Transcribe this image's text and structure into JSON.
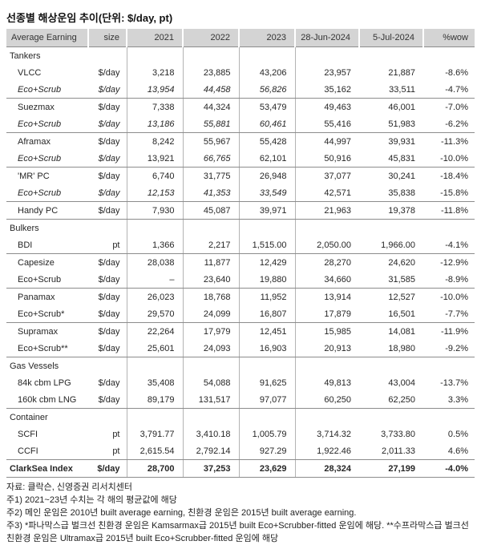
{
  "title": "선종별 해상운임 추이(단위:  $/day, pt)",
  "colors": {
    "header_bg": "#d4d4d4",
    "rule": "#8c8c8c",
    "grid": "#b3b3b3",
    "text": "#262626"
  },
  "table": {
    "columns": [
      "Average Earning",
      "size",
      "2021",
      "2022",
      "2023",
      "28-Jun-2024",
      "5-Jul-2024",
      "%wow"
    ],
    "rows": [
      {
        "type": "section",
        "label": "Tankers"
      },
      {
        "type": "data",
        "label": "VLCC",
        "size": "$/day",
        "values": [
          "3,218",
          "23,885",
          "43,206",
          "23,957",
          "21,887",
          "-8.6%"
        ]
      },
      {
        "type": "data",
        "label": "Eco+Scrub",
        "size": "$/day",
        "values": [
          "13,954",
          "44,458",
          "56,826",
          "35,162",
          "33,511",
          "-4.7%"
        ],
        "label_italic": true,
        "italic_values": [
          0,
          1,
          2
        ],
        "group_end": true
      },
      {
        "type": "data",
        "label": "Suezmax",
        "size": "$/day",
        "values": [
          "7,338",
          "44,324",
          "53,479",
          "49,463",
          "46,001",
          "-7.0%"
        ]
      },
      {
        "type": "data",
        "label": "Eco+Scrub",
        "size": "$/day",
        "values": [
          "13,186",
          "55,881",
          "60,461",
          "55,416",
          "51,983",
          "-6.2%"
        ],
        "label_italic": true,
        "italic_values": [
          0,
          1,
          2
        ],
        "group_end": true
      },
      {
        "type": "data",
        "label": "Aframax",
        "size": "$/day",
        "values": [
          "8,242",
          "55,967",
          "55,428",
          "44,997",
          "39,931",
          "-11.3%"
        ]
      },
      {
        "type": "data",
        "label": "Eco+Scrub",
        "size": "$/day",
        "values": [
          "13,921",
          "66,765",
          "62,101",
          "50,916",
          "45,831",
          "-10.0%"
        ],
        "label_italic": true,
        "italic_values": [
          1
        ],
        "group_end": true
      },
      {
        "type": "data",
        "label": "'MR' PC",
        "size": "$/day",
        "values": [
          "6,740",
          "31,775",
          "26,948",
          "37,077",
          "30,241",
          "-18.4%"
        ]
      },
      {
        "type": "data",
        "label": "Eco+Scrub",
        "size": "$/day",
        "values": [
          "12,153",
          "41,353",
          "33,549",
          "42,571",
          "35,838",
          "-15.8%"
        ],
        "label_italic": true,
        "italic_values": [
          0,
          1,
          2
        ],
        "group_end": true
      },
      {
        "type": "data",
        "label": "Handy PC",
        "size": "$/day",
        "values": [
          "7,930",
          "45,087",
          "39,971",
          "21,963",
          "19,378",
          "-11.8%"
        ],
        "group_end": true
      },
      {
        "type": "section",
        "label": "Bulkers"
      },
      {
        "type": "data",
        "label": "BDI",
        "size": "pt",
        "values": [
          "1,366",
          "2,217",
          "1,515.00",
          "2,050.00",
          "1,966.00",
          "-4.1%"
        ],
        "group_end": true
      },
      {
        "type": "data",
        "label": "Capesize",
        "size": "$/day",
        "values": [
          "28,038",
          "11,877",
          "12,429",
          "28,270",
          "24,620",
          "-12.9%"
        ]
      },
      {
        "type": "data",
        "label": "Eco+Scrub",
        "size": "$/day",
        "values": [
          "–",
          "23,640",
          "19,880",
          "34,660",
          "31,585",
          "-8.9%"
        ],
        "group_end": true
      },
      {
        "type": "data",
        "label": "Panamax",
        "size": "$/day",
        "values": [
          "26,023",
          "18,768",
          "11,952",
          "13,914",
          "12,527",
          "-10.0%"
        ]
      },
      {
        "type": "data",
        "label": "Eco+Scrub*",
        "size": "$/day",
        "values": [
          "29,570",
          "24,099",
          "16,807",
          "17,879",
          "16,501",
          "-7.7%"
        ],
        "group_end": true
      },
      {
        "type": "data",
        "label": "Supramax",
        "size": "$/day",
        "values": [
          "22,264",
          "17,979",
          "12,451",
          "15,985",
          "14,081",
          "-11.9%"
        ]
      },
      {
        "type": "data",
        "label": "Eco+Scrub**",
        "size": "$/day",
        "values": [
          "25,601",
          "24,093",
          "16,903",
          "20,913",
          "18,980",
          "-9.2%"
        ],
        "group_end": true
      },
      {
        "type": "section",
        "label": "Gas Vessels"
      },
      {
        "type": "data",
        "label": "84k cbm LPG",
        "size": "$/day",
        "values": [
          "35,408",
          "54,088",
          "91,625",
          "49,813",
          "43,004",
          "-13.7%"
        ]
      },
      {
        "type": "data",
        "label": "160k cbm LNG",
        "size": "$/day",
        "values": [
          "89,179",
          "131,517",
          "97,077",
          "60,250",
          "62,250",
          "3.3%"
        ],
        "group_end": true
      },
      {
        "type": "section",
        "label": "Container"
      },
      {
        "type": "data",
        "label": "SCFI",
        "size": "pt",
        "values": [
          "3,791.77",
          "3,410.18",
          "1,005.79",
          "3,714.32",
          "3,733.80",
          "0.5%"
        ]
      },
      {
        "type": "data",
        "label": "CCFI",
        "size": "pt",
        "values": [
          "2,615.54",
          "2,792.14",
          "927.29",
          "1,922.46",
          "2,011.33",
          "4.6%"
        ],
        "group_end": true
      },
      {
        "type": "data",
        "label": "ClarkSea Index",
        "size": "$/day",
        "values": [
          "28,700",
          "37,253",
          "23,629",
          "28,324",
          "27,199",
          "-4.0%"
        ],
        "bold": true,
        "group_end": true
      }
    ]
  },
  "source": "자료: 클락슨, 신영증권 리서치센터",
  "notes": [
    "주1) 2021~23년 수치는 각 해의 평균값에 해당",
    "주2) 메인 운임은 2010년 built average earning, 친환경 운임은 2015년 built average earning.",
    "주3) *파나막스급 벌크선 친환경 운임은 Kamsarmax급 2015년 built Eco+Scrubber-fitted 운임에 해당. **수프라막스급 벌크선 친환경 운임은 Ultramax급 2015년 built Eco+Scrubber-fitted 운임에 해당"
  ]
}
